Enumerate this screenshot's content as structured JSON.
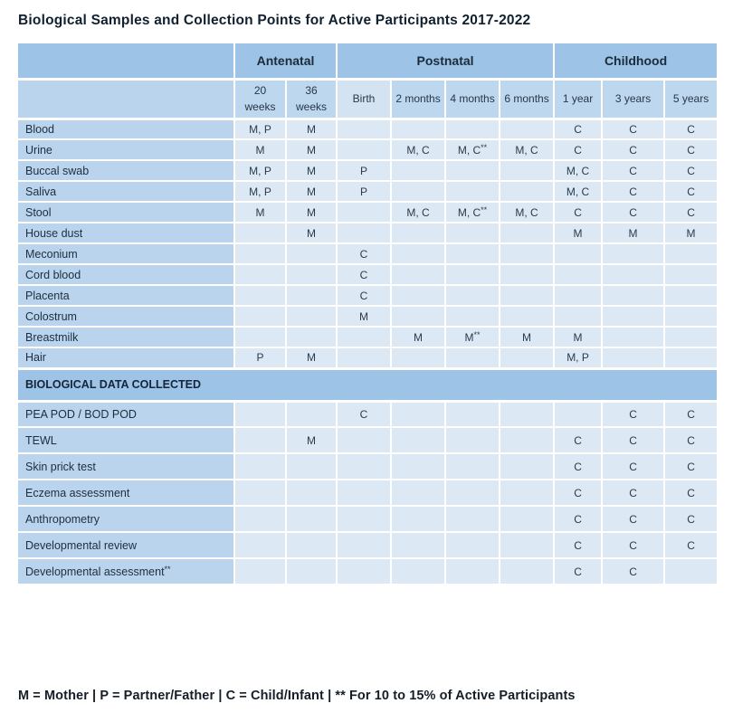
{
  "chart_data": {
    "type": "table",
    "title": "Biological Samples and Collection Points for Active Participants 2017-2022",
    "column_groups": [
      {
        "label": "",
        "span": 1
      },
      {
        "label": "Antenatal",
        "span": 2
      },
      {
        "label": "Postnatal",
        "span": 4
      },
      {
        "label": "Childhood",
        "span": 3
      }
    ],
    "columns": [
      "20 weeks",
      "36 weeks",
      "Birth",
      "2 months",
      "4 months",
      "6 months",
      "1 year",
      "3 years",
      "5 years"
    ],
    "rows": [
      {
        "label": "Blood",
        "cells": [
          "M, P",
          "M",
          "",
          "",
          "",
          "",
          "C",
          "C",
          "C"
        ]
      },
      {
        "label": "Urine",
        "cells": [
          "M",
          "M",
          "",
          "M, C",
          "M, C**",
          "M, C",
          "C",
          "C",
          "C"
        ]
      },
      {
        "label": "Buccal swab",
        "cells": [
          "M, P",
          "M",
          "P",
          "",
          "",
          "",
          "M, C",
          "C",
          "C"
        ]
      },
      {
        "label": "Saliva",
        "cells": [
          "M, P",
          "M",
          "P",
          "",
          "",
          "",
          "M, C",
          "C",
          "C"
        ]
      },
      {
        "label": "Stool",
        "cells": [
          "M",
          "M",
          "",
          "M, C",
          "M, C**",
          "M, C",
          "C",
          "C",
          "C"
        ]
      },
      {
        "label": "House dust",
        "cells": [
          "",
          "M",
          "",
          "",
          "",
          "",
          "M",
          "M",
          "M"
        ]
      },
      {
        "label": "Meconium",
        "cells": [
          "",
          "",
          "C",
          "",
          "",
          "",
          "",
          "",
          ""
        ]
      },
      {
        "label": "Cord blood",
        "cells": [
          "",
          "",
          "C",
          "",
          "",
          "",
          "",
          "",
          ""
        ]
      },
      {
        "label": "Placenta",
        "cells": [
          "",
          "",
          "C",
          "",
          "",
          "",
          "",
          "",
          ""
        ]
      },
      {
        "label": "Colostrum",
        "cells": [
          "",
          "",
          "M",
          "",
          "",
          "",
          "",
          "",
          ""
        ]
      },
      {
        "label": "Breastmilk",
        "cells": [
          "",
          "",
          "",
          "M",
          "M**",
          "M",
          "M",
          "",
          ""
        ]
      },
      {
        "label": "Hair",
        "cells": [
          "P",
          "M",
          "",
          "",
          "",
          "",
          "M, P",
          "",
          ""
        ]
      },
      {
        "label": "BIOLOGICAL DATA COLLECTED",
        "section": true
      },
      {
        "label": "PEA POD / BOD POD",
        "cells": [
          "",
          "",
          "C",
          "",
          "",
          "",
          "",
          "C",
          "C"
        ],
        "lower": true
      },
      {
        "label": "TEWL",
        "cells": [
          "",
          "M",
          "",
          "",
          "",
          "",
          "C",
          "C",
          "C"
        ],
        "lower": true
      },
      {
        "label": "Skin prick test",
        "cells": [
          "",
          "",
          "",
          "",
          "",
          "",
          "C",
          "C",
          "C"
        ],
        "lower": true
      },
      {
        "label": "Eczema assessment",
        "cells": [
          "",
          "",
          "",
          "",
          "",
          "",
          "C",
          "C",
          "C"
        ],
        "lower": true
      },
      {
        "label": "Anthropometry",
        "cells": [
          "",
          "",
          "",
          "",
          "",
          "",
          "C",
          "C",
          "C"
        ],
        "lower": true
      },
      {
        "label": "Developmental review",
        "cells": [
          "",
          "",
          "",
          "",
          "",
          "",
          "C",
          "C",
          "C"
        ],
        "lower": true
      },
      {
        "label": "Developmental assessment**",
        "cells": [
          "",
          "",
          "",
          "",
          "",
          "",
          "C",
          "C",
          ""
        ],
        "lower": true
      }
    ],
    "legend": "M = Mother | P = Partner/Father | C = Child/Infant | ** For 10 to 15% of Active Participants",
    "key": {
      "M": "Mother",
      "P": "Partner/Father",
      "C": "Child/Infant",
      "**": "For 10 to 15% of Active Participants"
    }
  },
  "colors": {
    "group_header_blue": "#9dc3e6",
    "column_header_blue": "#bdd7ee",
    "row_label_blue": "#b9d4ec",
    "data_cell_blue": "#dce9f5",
    "birth_header_light_blue": "#d4e3f2",
    "grid_line_white": "#ffffff",
    "text_dark": "#1b2b3a"
  }
}
